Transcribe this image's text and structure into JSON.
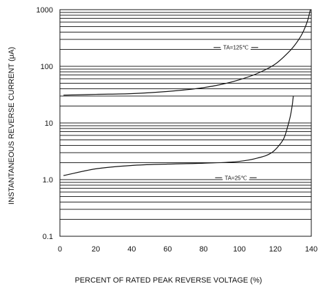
{
  "chart_data": {
    "type": "line",
    "title": "",
    "xlabel": "PERCENT OF RATED PEAK REVERSE VOLTAGE (%)",
    "ylabel": "INSTANTANEOUS REVERSE CURRENT (μA)",
    "xlim": [
      0,
      140
    ],
    "ylim": [
      0.1,
      1000
    ],
    "y_scale": "log",
    "grid": true,
    "x_ticks": [
      0,
      20,
      40,
      60,
      80,
      100,
      120,
      140
    ],
    "y_ticks": [
      {
        "value": 0.1,
        "label": "0.1"
      },
      {
        "value": 1,
        "label": "1.0"
      },
      {
        "value": 10,
        "label": "10"
      },
      {
        "value": 100,
        "label": "100"
      },
      {
        "value": 1000,
        "label": "1000"
      }
    ],
    "series": [
      {
        "name": "TA=125℃",
        "x": [
          2,
          20,
          40,
          60,
          80,
          90,
          100,
          110,
          120,
          125,
          130,
          135,
          138,
          139.5
        ],
        "values": [
          31,
          32,
          33,
          36,
          42,
          48,
          58,
          75,
          110,
          150,
          220,
          380,
          650,
          1000
        ]
      },
      {
        "name": "TA=25℃",
        "x": [
          2,
          20,
          40,
          60,
          80,
          100,
          110,
          118,
          122,
          125,
          127,
          128.5,
          129.5,
          130
        ],
        "values": [
          1.18,
          1.55,
          1.78,
          1.88,
          1.95,
          2.1,
          2.4,
          3.0,
          4.0,
          5.6,
          9,
          14,
          22,
          30
        ]
      }
    ]
  }
}
